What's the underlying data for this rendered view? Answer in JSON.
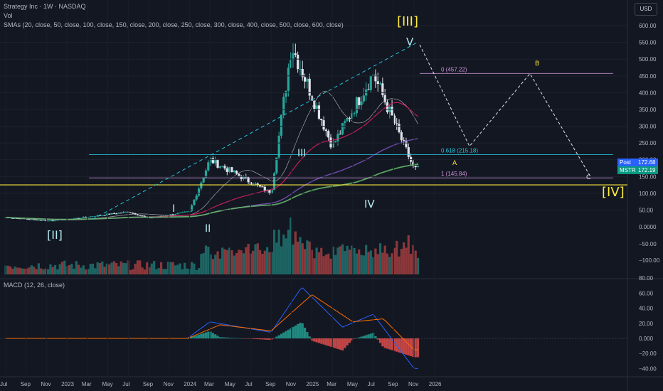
{
  "header": {
    "title": "Strategy Inc · 1W · NASDAQ",
    "vol_label": "Vol",
    "sma_label": "SMAs (20, close, 50, close, 100, close, 150, close, 200, close, 250, close, 300, close, 400, close, 500, close, 600, close)",
    "macd_label": "MACD (12, 26, close)",
    "currency_button": "USD"
  },
  "price_tags": {
    "post_label": "Post",
    "post_value": "172.68",
    "ticker_label": "MSTR",
    "ticker_value": "172.19"
  },
  "colors": {
    "up": "#26a69a",
    "down": "#ef5350",
    "background": "#131722",
    "wave": "#ffeb3b",
    "fib": "#ce93d8"
  },
  "chart_data": [
    {
      "type": "candlestick",
      "pane": "price",
      "x_ticks": [
        "Jul",
        "Sep",
        "Nov",
        "2023",
        "Mar",
        "May",
        "Jul",
        "Sep",
        "Nov",
        "2024",
        "Mar",
        "May",
        "Jul",
        "Sep",
        "Nov",
        "2025",
        "Mar",
        "May",
        "Jul",
        "Sep",
        "Nov",
        "2026"
      ],
      "y_ticks": [
        "600.00",
        "550.00",
        "500.00",
        "450.00",
        "400.00",
        "350.00",
        "300.00",
        "250.00",
        "200.00",
        "150.00",
        "100.00",
        "50.00"
      ],
      "ylim": [
        0,
        620
      ],
      "key_points": [
        {
          "date": "2022-07",
          "close": 28
        },
        {
          "date": "2022-11",
          "close": 18
        },
        {
          "date": "2023-01",
          "close": 22
        },
        {
          "date": "2023-07",
          "close": 45
        },
        {
          "date": "2023-09",
          "close": 26
        },
        {
          "date": "2024-01",
          "close": 45
        },
        {
          "date": "2024-03",
          "close": 200
        },
        {
          "date": "2024-09",
          "close": 100
        },
        {
          "date": "2024-11",
          "close": 543
        },
        {
          "date": "2025-03",
          "close": 240
        },
        {
          "date": "2025-07",
          "close": 457
        },
        {
          "date": "2025-11",
          "close": 172
        }
      ],
      "fib_levels": [
        {
          "label": "0 (457.22)",
          "value": 457.22
        },
        {
          "label": "0.618 (215.18)",
          "value": 215.18
        },
        {
          "label": "1 (145.84)",
          "value": 145.84
        }
      ],
      "horizontal_line": 125,
      "wave_labels": [
        "[III]",
        "V",
        "III",
        "IV",
        "I",
        "II",
        "[II]",
        "[IV]",
        "A",
        "B",
        "C"
      ]
    },
    {
      "type": "bar",
      "pane": "volume",
      "y_ticks": [
        "0.0000",
        "−50.00",
        "−100.00"
      ]
    },
    {
      "type": "line",
      "pane": "macd",
      "y_ticks": [
        "80.00",
        "60.00",
        "40.00",
        "20.00",
        "0.000",
        "−20.00",
        "−40.00"
      ],
      "ylim": [
        -45,
        85
      ],
      "macd_key_points": [
        {
          "date": "2024-01",
          "value": 2
        },
        {
          "date": "2024-03",
          "value": 22
        },
        {
          "date": "2024-09",
          "value": 8
        },
        {
          "date": "2024-12",
          "value": 68
        },
        {
          "date": "2025-04",
          "value": 15
        },
        {
          "date": "2025-07",
          "value": 32
        },
        {
          "date": "2025-11",
          "value": -40
        }
      ],
      "signal_key_points": [
        {
          "date": "2024-01",
          "value": 1
        },
        {
          "date": "2024-04",
          "value": 18
        },
        {
          "date": "2024-09",
          "value": 10
        },
        {
          "date": "2025-01",
          "value": 58
        },
        {
          "date": "2025-05",
          "value": 22
        },
        {
          "date": "2025-08",
          "value": 26
        },
        {
          "date": "2025-11",
          "value": -15
        }
      ]
    }
  ]
}
